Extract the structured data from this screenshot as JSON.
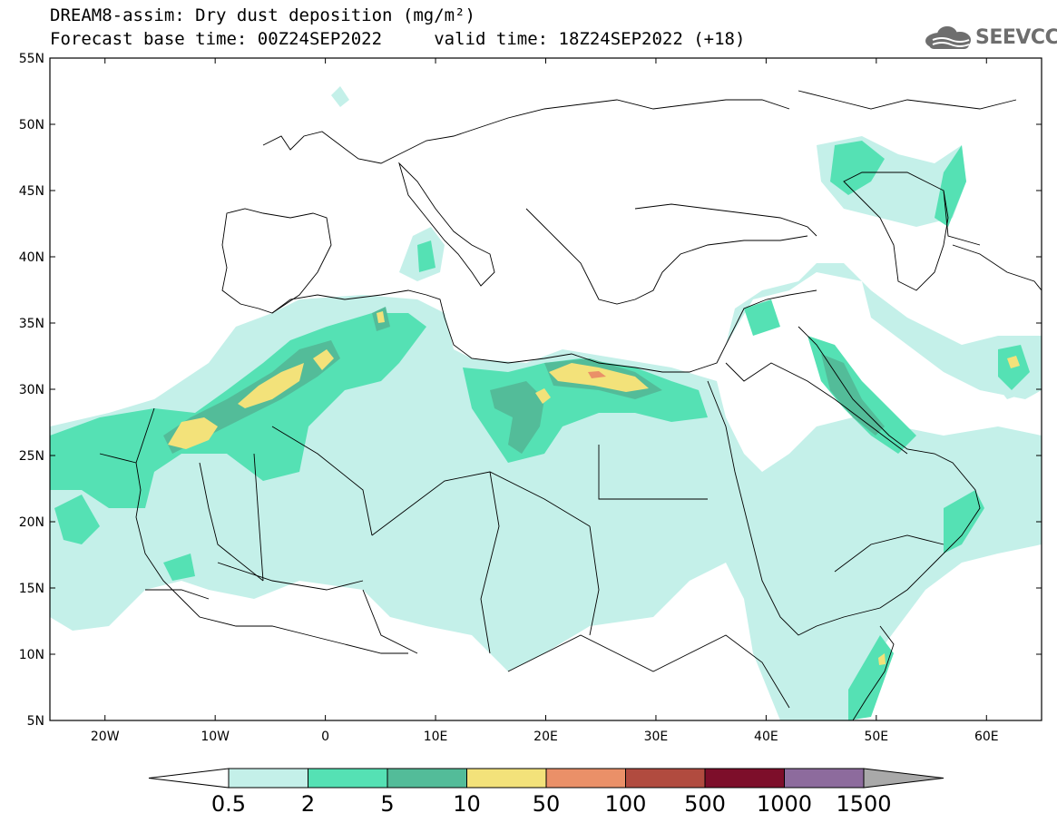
{
  "header": {
    "title_line1": "DREAM8-assim: Dry dust deposition (mg/m²)",
    "title_line2": "Forecast base time: 00Z24SEP2022     valid time: 18Z24SEP2022 (+18)",
    "logo_text": "SEEVCCC"
  },
  "map": {
    "lon_range": [
      -25,
      65
    ],
    "lat_range": [
      5,
      55
    ],
    "lat_ticks": [
      "55N",
      "50N",
      "45N",
      "40N",
      "35N",
      "30N",
      "25N",
      "20N",
      "15N",
      "10N",
      "5N"
    ],
    "lon_ticks": [
      "20W",
      "10W",
      "0",
      "10E",
      "20E",
      "30E",
      "40E",
      "50E",
      "60E"
    ]
  },
  "legend": {
    "labels": [
      "0.5",
      "2",
      "5",
      "10",
      "50",
      "100",
      "500",
      "1000",
      "1500"
    ],
    "colors": [
      "#c4f0e9",
      "#55e1b4",
      "#53bc99",
      "#f3e27a",
      "#ea9068",
      "#b14b3f",
      "#7d0e2a",
      "#8d6b9d"
    ],
    "under_color": "#ffffff",
    "over_color": "#a9a9a9"
  }
}
